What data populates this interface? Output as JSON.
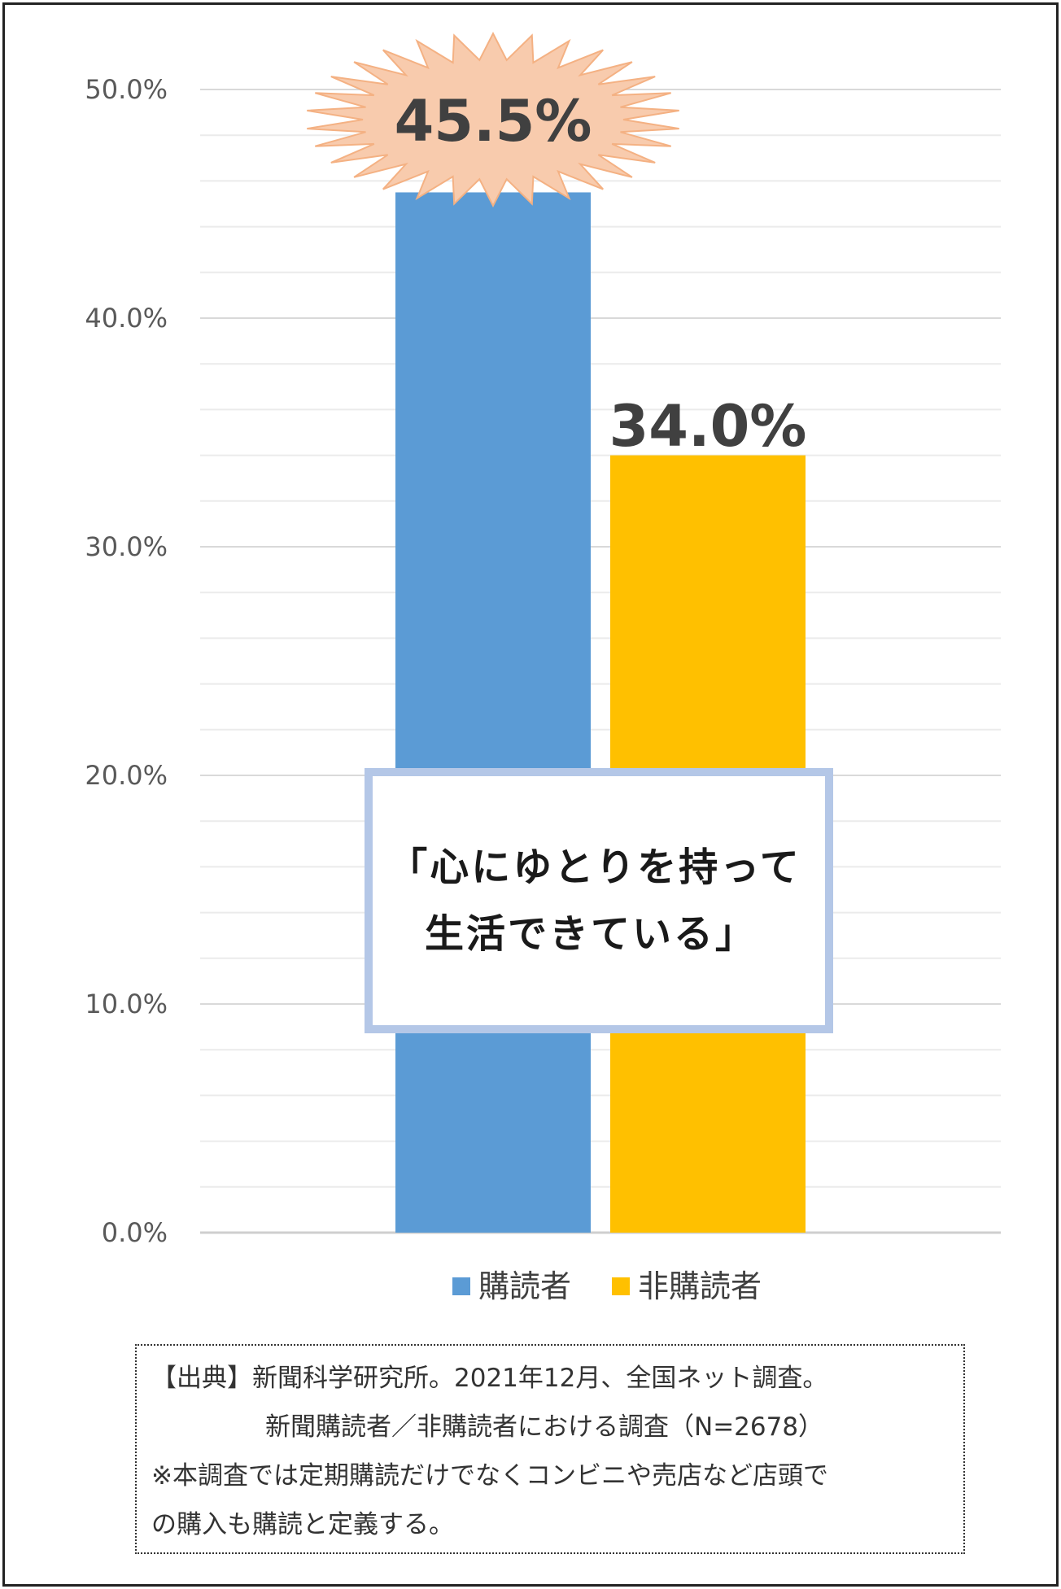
{
  "chart_data": {
    "type": "bar",
    "categories": [
      "購読者",
      "非購読者"
    ],
    "values": [
      45.5,
      34.0
    ],
    "series": [
      {
        "name": "購読者",
        "value": 45.5,
        "color": "#5b9bd5"
      },
      {
        "name": "非購読者",
        "value": 34.0,
        "color": "#ffc000"
      }
    ],
    "data_labels": [
      "45.5%",
      "34.0%"
    ],
    "ylim": [
      0,
      50
    ],
    "yticks": [
      0,
      10,
      20,
      30,
      40,
      50
    ],
    "ytick_labels": [
      "0.0%",
      "10.0%",
      "20.0%",
      "30.0%",
      "40.0%",
      "50.0%"
    ],
    "minor_grid_step": 2,
    "grid": true,
    "legend_position": "bottom",
    "title": "",
    "xlabel": "",
    "ylabel": ""
  },
  "callout": {
    "line1": "「心にゆとりを持って",
    "line2": "生活できている」"
  },
  "source": {
    "line1": "【出典】新聞科学研究所。2021年12月、全国ネット調査。",
    "line2": "新聞購読者／非購読者における調査（N=2678）",
    "line3": "※本調査では定期購読だけでなくコンビニや売店など店頭で",
    "line4": "の購入も購読と定義する。"
  },
  "colors": {
    "bar_subscriber": "#5b9bd5",
    "bar_non_subscriber": "#ffc000",
    "starburst": "#f8cbad",
    "callout_border": "#b4c7e7"
  }
}
